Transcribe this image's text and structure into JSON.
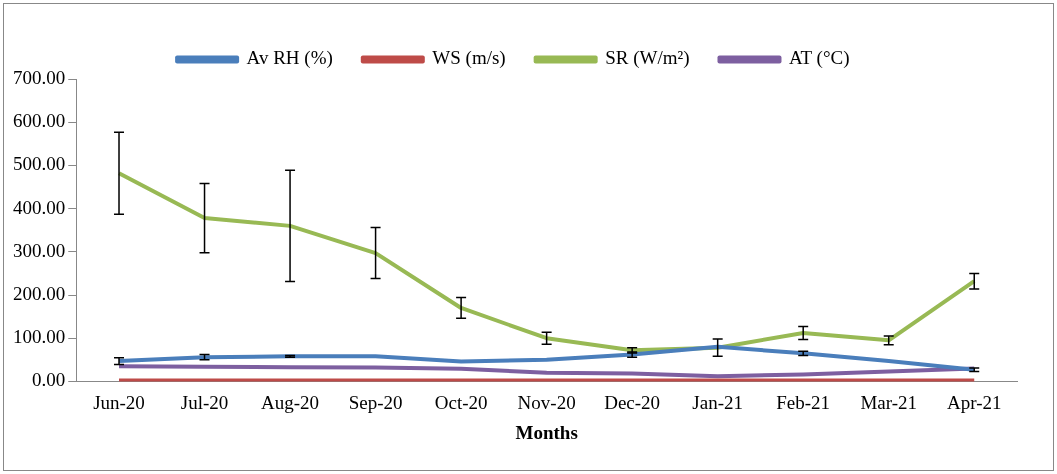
{
  "chart_data": {
    "type": "line",
    "xlabel": "Months",
    "categories": [
      "Jun-20",
      "Jul-20",
      "Aug-20",
      "Sep-20",
      "Oct-20",
      "Nov-20",
      "Dec-20",
      "Jan-21",
      "Feb-21",
      "Mar-21",
      "Apr-21"
    ],
    "ylim": [
      0,
      700
    ],
    "yticks": [
      {
        "value": 0,
        "label": "0.00"
      },
      {
        "value": 100,
        "label": "100.00"
      },
      {
        "value": 200,
        "label": "200.00"
      },
      {
        "value": 300,
        "label": "300.00"
      },
      {
        "value": 400,
        "label": "400.00"
      },
      {
        "value": 500,
        "label": "500.00"
      },
      {
        "value": 600,
        "label": "600.00"
      },
      {
        "value": 700,
        "label": "700.00"
      }
    ],
    "grid": false,
    "legend": "top",
    "marker": "none",
    "line_style": "solid",
    "series": [
      {
        "name": "Av RH (%)",
        "color": "#4a7ebb",
        "values": [
          47,
          56,
          58,
          58,
          46,
          50,
          62,
          80,
          65,
          47,
          27
        ],
        "errors": [
          8,
          6,
          2,
          null,
          null,
          null,
          6,
          null,
          5,
          null,
          4
        ]
      },
      {
        "name": "WS (m/s)",
        "color": "#be4b48",
        "values": [
          2,
          2,
          2,
          2,
          2,
          2,
          2,
          2,
          2,
          2,
          2
        ]
      },
      {
        "name": "SR (W/m²)",
        "color": "#98b954",
        "values": [
          482,
          378,
          360,
          297,
          170,
          100,
          72,
          78,
          112,
          95,
          232
        ],
        "errors": [
          95,
          80,
          129,
          59,
          24,
          14,
          6,
          20,
          15,
          10,
          18
        ]
      },
      {
        "name": "AT (°C)",
        "color": "#7d5fa0",
        "values": [
          35,
          34,
          33,
          32,
          29,
          20,
          18,
          12,
          16,
          23,
          30
        ]
      }
    ]
  }
}
